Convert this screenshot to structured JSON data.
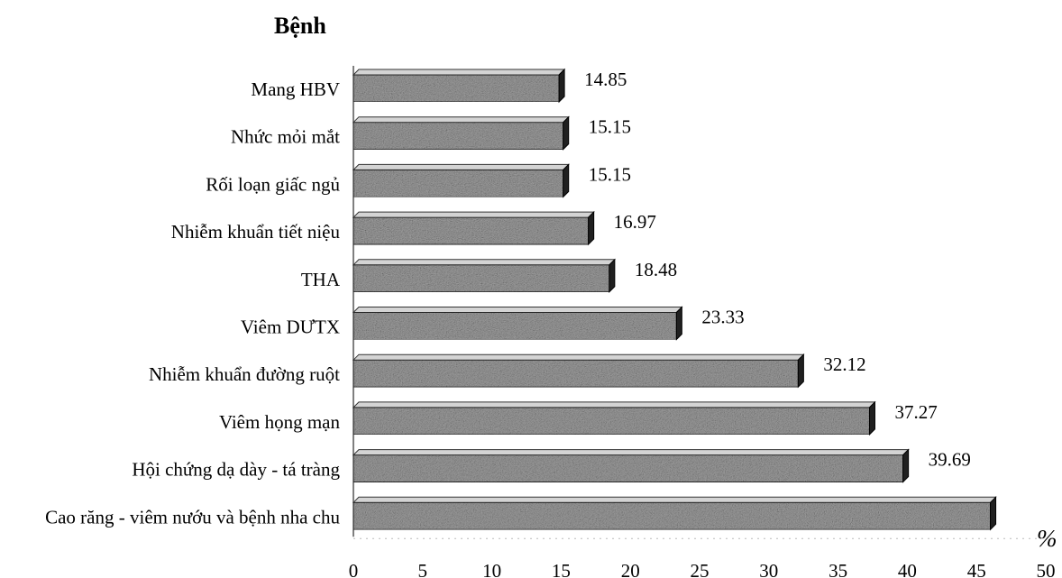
{
  "chart_data": {
    "type": "bar",
    "orientation": "horizontal",
    "y_title": "Bệnh",
    "unit_label": "%",
    "categories": [
      "Mang HBV",
      "Nhức mỏi mắt",
      "Rối loạn giấc ngủ",
      "Nhiễm khuẩn tiết niệu",
      "THA",
      "Viêm DƯTX",
      "Nhiễm khuẩn đường ruột",
      "Viêm họng mạn",
      "Hội chứng dạ dày - tá tràng",
      "Cao răng - viêm nướu và bệnh nha chu"
    ],
    "values": [
      14.85,
      15.15,
      15.15,
      16.97,
      18.48,
      23.33,
      32.12,
      37.27,
      39.69,
      null
    ],
    "value_labels": [
      "14.85",
      "15.15",
      "15.15",
      "16.97",
      "18.48",
      "23.33",
      "32.12",
      "37.27",
      "39.69",
      ""
    ],
    "value_estimated_for_unlabeled_bar": 46,
    "xlim": [
      0,
      50
    ],
    "xticks": [
      "0",
      "5",
      "10",
      "15",
      "20",
      "25",
      "30",
      "35",
      "40",
      "45",
      "50"
    ],
    "grid": false,
    "legend": "none",
    "colors": {
      "bar_front": "#a0a0a0",
      "bar_top": "#d4d4d4",
      "bar_side": "#202020",
      "axis": "#555555"
    }
  }
}
